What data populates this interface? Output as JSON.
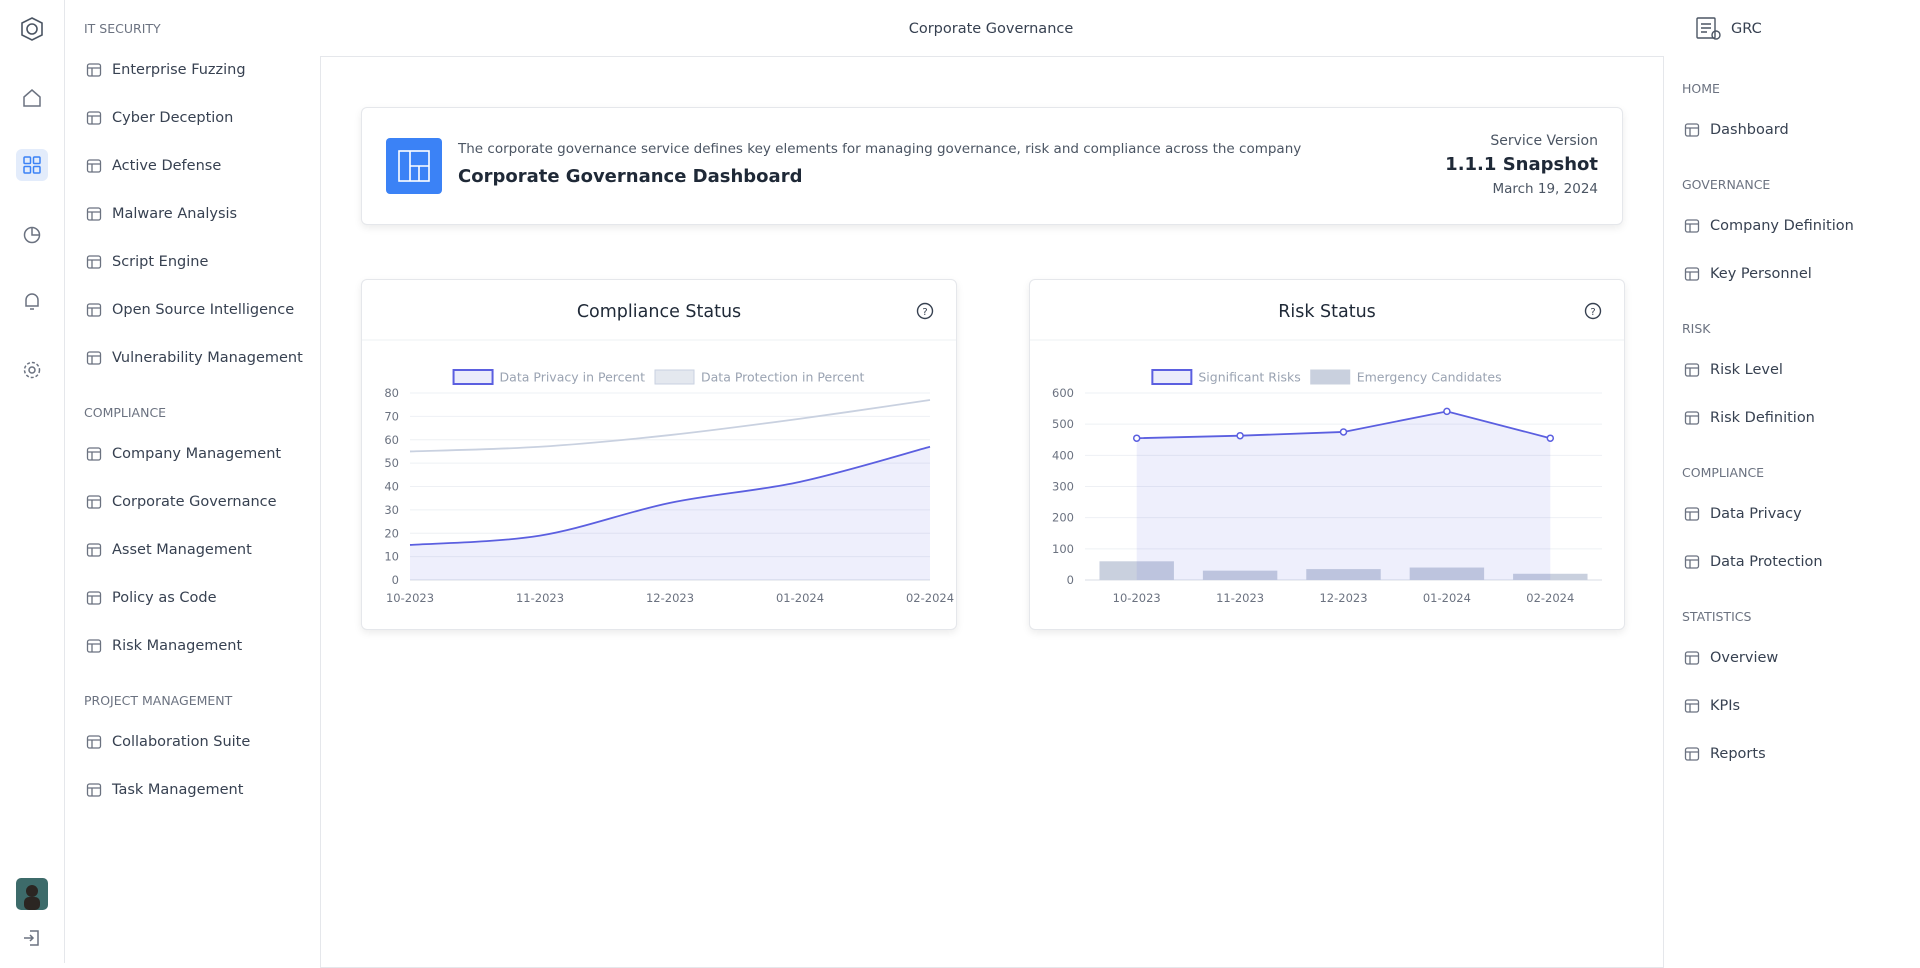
{
  "header": {
    "title": "Corporate Governance"
  },
  "left_menu": [
    {
      "title": "IT SECURITY",
      "items": [
        "Enterprise Fuzzing",
        "Cyber Deception",
        "Active Defense",
        "Malware Analysis",
        "Script Engine",
        "Open Source Intelligence",
        "Vulnerability Management"
      ]
    },
    {
      "title": "COMPLIANCE",
      "items": [
        "Company Management",
        "Corporate Governance",
        "Asset Management",
        "Policy as Code",
        "Risk Management"
      ]
    },
    {
      "title": "PROJECT MANAGEMENT",
      "items": [
        "Collaboration Suite",
        "Task Management"
      ]
    }
  ],
  "right_menu": {
    "app": "GRC",
    "sections": [
      {
        "title": "HOME",
        "items": [
          "Dashboard"
        ]
      },
      {
        "title": "GOVERNANCE",
        "items": [
          "Company Definition",
          "Key Personnel"
        ]
      },
      {
        "title": "RISK",
        "items": [
          "Risk Level",
          "Risk Definition"
        ]
      },
      {
        "title": "COMPLIANCE",
        "items": [
          "Data Privacy",
          "Data Protection"
        ]
      },
      {
        "title": "STATISTICS",
        "items": [
          "Overview",
          "KPIs",
          "Reports"
        ]
      }
    ]
  },
  "banner": {
    "description": "The corporate governance service defines key elements for managing governance, risk and compliance across the company",
    "title": "Corporate Governance Dashboard",
    "version_label": "Service Version",
    "version": "1.1.1 Snapshot",
    "date": "March 19, 2024"
  },
  "chart_data": [
    {
      "type": "line",
      "title": "Compliance Status",
      "smooth": true,
      "grid": true,
      "categories": [
        "10-2023",
        "11-2023",
        "12-2023",
        "01-2024",
        "02-2024"
      ],
      "series": [
        {
          "name": "Data Privacy in Percent",
          "color": "#5b5fe0",
          "area": true,
          "values": [
            15,
            19,
            33,
            42,
            57
          ]
        },
        {
          "name": "Data Protection in Percent",
          "color": "#c9d1e0",
          "area": false,
          "values": [
            55,
            57,
            62,
            69,
            77
          ]
        }
      ],
      "ylim": [
        0,
        80
      ],
      "yticks": [
        0,
        10,
        20,
        30,
        40,
        50,
        60,
        70,
        80
      ]
    },
    {
      "type": "combo",
      "title": "Risk Status",
      "smooth": false,
      "grid": true,
      "categories": [
        "10-2023",
        "11-2023",
        "12-2023",
        "01-2024",
        "02-2024"
      ],
      "series": [
        {
          "name": "Significant Risks",
          "type": "line",
          "color": "#5b5fe0",
          "area": true,
          "markers": true,
          "values": [
            455,
            463,
            475,
            541,
            455
          ]
        },
        {
          "name": "Emergency Candidates",
          "type": "bar",
          "color": "#c9d0de",
          "values": [
            60,
            30,
            35,
            40,
            20
          ]
        }
      ],
      "ylim": [
        0,
        600
      ],
      "yticks": [
        0,
        100,
        200,
        300,
        400,
        500,
        600
      ]
    }
  ]
}
